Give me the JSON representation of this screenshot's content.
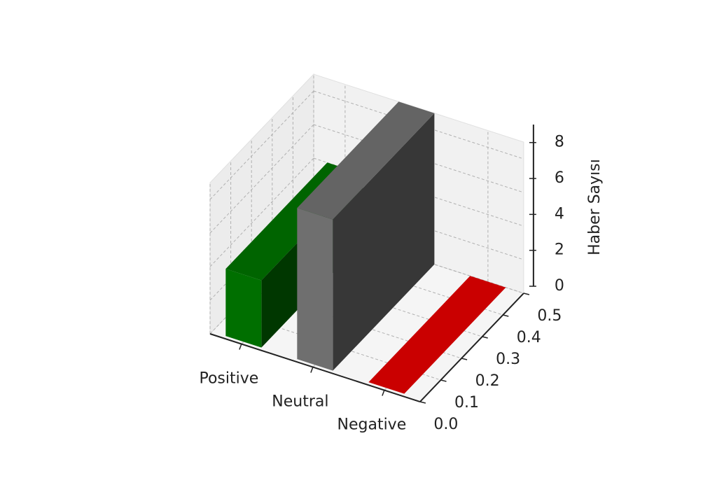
{
  "chart_data": {
    "type": "bar3d",
    "categories": [
      "Positive",
      "Neutral",
      "Negative"
    ],
    "values": [
      4,
      9,
      0
    ],
    "colors": [
      "#008000",
      "#808080",
      "#e00000"
    ],
    "zlabel": "Haber Sayısı",
    "zlim": [
      0,
      9
    ],
    "zticks": [
      0,
      2,
      4,
      6,
      8
    ],
    "ylim": [
      0,
      0.5
    ],
    "yticks": [
      {
        "value": 0,
        "label": "0.0"
      },
      {
        "value": 0.1,
        "label": "0.1"
      },
      {
        "value": 0.2,
        "label": "0.2"
      },
      {
        "value": 0.3,
        "label": "0.3"
      },
      {
        "value": 0.4,
        "label": "0.4"
      },
      {
        "value": 0.5,
        "label": "0.5"
      }
    ],
    "grid": true
  }
}
